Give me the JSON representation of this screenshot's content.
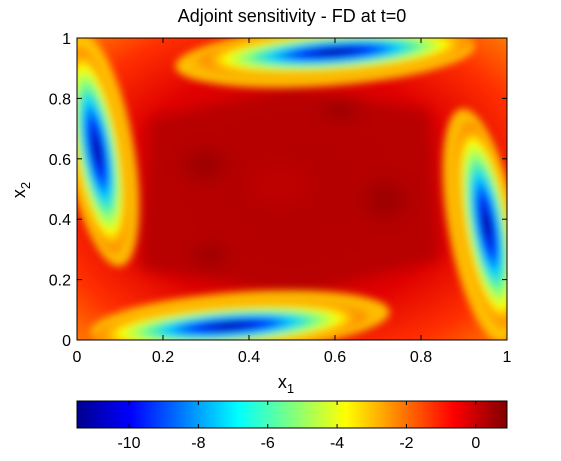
{
  "chart_data": {
    "type": "heatmap",
    "title": "Adjoint sensitivity - FD at t=0",
    "xlabel": "x",
    "xlabel_subscript": "1",
    "ylabel": "x",
    "ylabel_subscript": "2",
    "xlim": [
      0,
      1
    ],
    "ylim": [
      0,
      1
    ],
    "xticks": [
      "0",
      "0.2",
      "0.4",
      "0.6",
      "0.8",
      "1"
    ],
    "yticks": [
      "0",
      "0.2",
      "0.4",
      "0.6",
      "0.8",
      "1"
    ],
    "colormap": "jet",
    "clim": [
      -11.5,
      0.9
    ],
    "colorbar": {
      "location": "bottom",
      "ticks": [
        {
          "value": -10,
          "label": "-10"
        },
        {
          "value": -8,
          "label": "-8"
        },
        {
          "value": -6,
          "label": "-6"
        },
        {
          "value": -4,
          "label": "-4"
        },
        {
          "value": -2,
          "label": "-2"
        },
        {
          "value": 0,
          "label": "0"
        }
      ]
    },
    "field_features": [
      {
        "kind": "minimum-band",
        "center": [
          0.04,
          0.62
        ],
        "value": -11.5,
        "edge": "left"
      },
      {
        "kind": "minimum-band",
        "center": [
          0.96,
          0.4
        ],
        "value": -11.5,
        "edge": "right"
      },
      {
        "kind": "minimum-band",
        "center": [
          0.3,
          0.04
        ],
        "value": -11.5,
        "edge": "bottom"
      },
      {
        "kind": "minimum-band",
        "center": [
          0.7,
          0.96
        ],
        "value": -11.5,
        "edge": "top"
      },
      {
        "kind": "interior-plateau",
        "center": [
          0.5,
          0.5
        ],
        "value": 0.5
      }
    ]
  }
}
